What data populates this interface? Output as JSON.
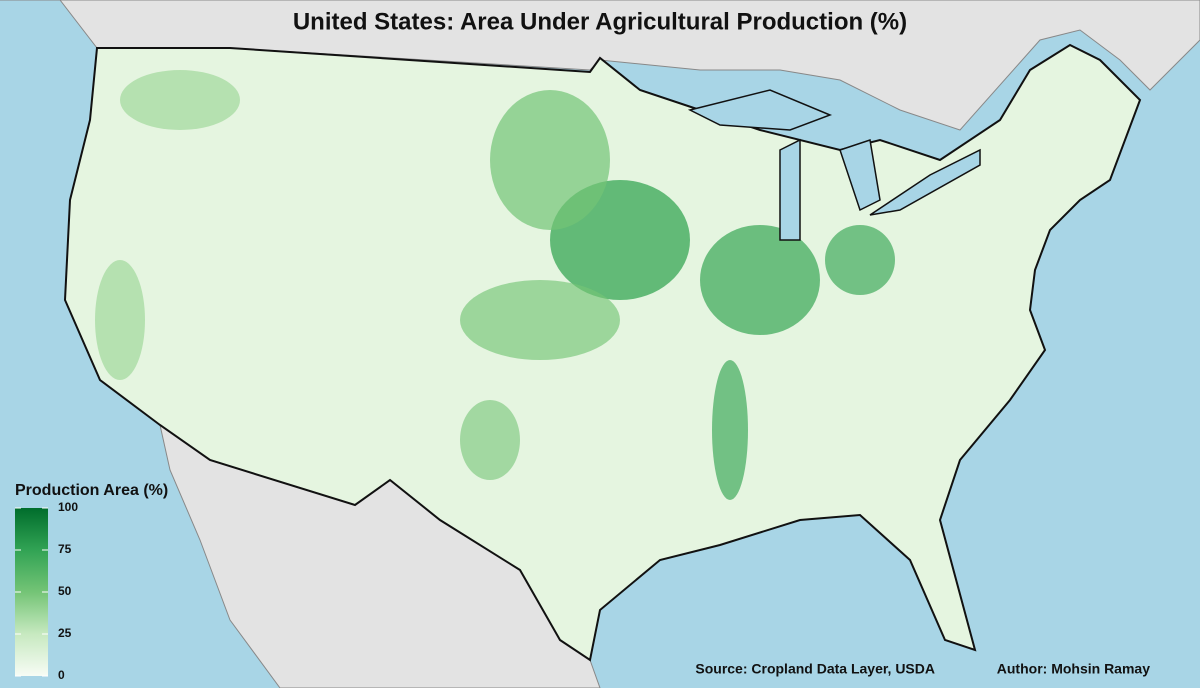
{
  "title": "United States: Area Under Agricultural Production (%)",
  "legend": {
    "title": "Production Area (%)",
    "range": [
      0,
      100
    ],
    "ticks": [
      0,
      25,
      50,
      75,
      100
    ],
    "colors": [
      "#f7fcf5",
      "#c7e9c0",
      "#74c476",
      "#31a354",
      "#006d2c"
    ]
  },
  "source": "Source: Cropland Data Layer, USDA",
  "author": "Author: Mohsin Ramay"
}
